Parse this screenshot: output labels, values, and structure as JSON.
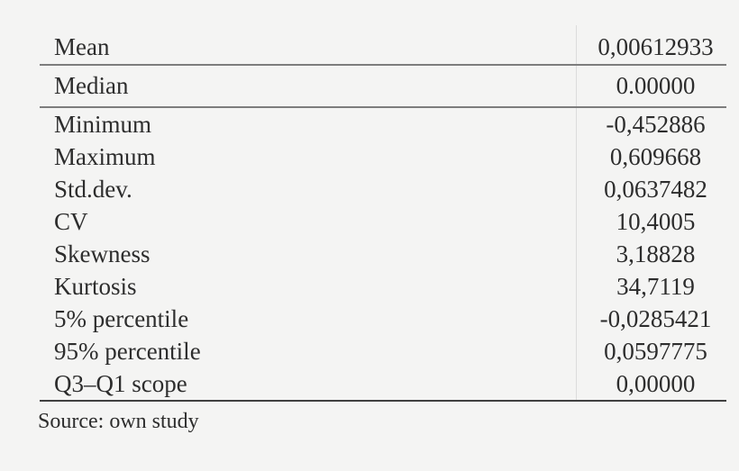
{
  "colors": {
    "background": "#f4f4f3",
    "text": "#2d2d2d",
    "rule_gray": "#7d7d7d",
    "rule_dark": "#404040",
    "column_divider": "#dcdcdc"
  },
  "chart_data": {
    "type": "table",
    "rows": [
      {
        "label": "Mean",
        "value": "0,00612933"
      },
      {
        "label": "Median",
        "value": "0.00000"
      },
      {
        "label": "Minimum",
        "value": "-0,452886"
      },
      {
        "label": "Maximum",
        "value": "0,609668"
      },
      {
        "label": "Std.dev.",
        "value": "0,0637482"
      },
      {
        "label": "CV",
        "value": "10,4005"
      },
      {
        "label": "Skewness",
        "value": "3,18828"
      },
      {
        "label": "Kurtosis",
        "value": "34,7119"
      },
      {
        "label": "5% percentile",
        "value": "-0,0285421"
      },
      {
        "label": "95% percentile",
        "value": "0,0597775"
      },
      {
        "label": "Q3–Q1 scope",
        "value": "0,00000"
      }
    ],
    "caption": "Source: own study",
    "layout": {
      "grid": "horizontal rules under rows 1, 2 and 11; faint vertical divider between columns",
      "value_alignment": "center",
      "label_alignment": "left"
    }
  }
}
